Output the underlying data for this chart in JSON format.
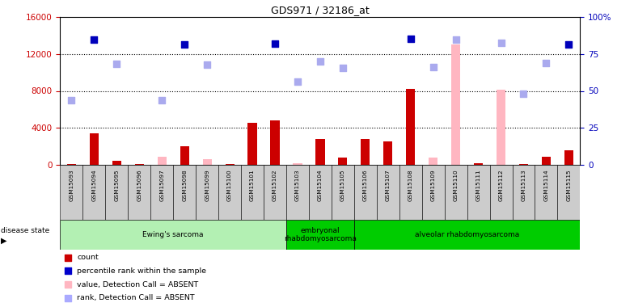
{
  "title": "GDS971 / 32186_at",
  "samples": [
    "GSM15093",
    "GSM15094",
    "GSM15095",
    "GSM15096",
    "GSM15097",
    "GSM15098",
    "GSM15099",
    "GSM15100",
    "GSM15101",
    "GSM15102",
    "GSM15103",
    "GSM15104",
    "GSM15105",
    "GSM15106",
    "GSM15107",
    "GSM15108",
    "GSM15109",
    "GSM15110",
    "GSM15111",
    "GSM15112",
    "GSM15113",
    "GSM15114",
    "GSM15115"
  ],
  "count_red": [
    100,
    3400,
    500,
    100,
    null,
    2000,
    null,
    100,
    4600,
    4800,
    null,
    2800,
    800,
    2800,
    2600,
    8200,
    100,
    300,
    200,
    200,
    100,
    900,
    1600
  ],
  "count_pink": [
    null,
    null,
    null,
    null,
    900,
    null,
    600,
    null,
    null,
    null,
    200,
    null,
    null,
    null,
    null,
    null,
    800,
    13000,
    null,
    8100,
    null,
    null,
    null
  ],
  "rank_blue": [
    null,
    13500,
    null,
    null,
    null,
    13000,
    null,
    null,
    null,
    13100,
    null,
    null,
    null,
    null,
    null,
    13600,
    null,
    null,
    null,
    null,
    null,
    null,
    13000
  ],
  "rank_lightblue": [
    7000,
    null,
    10900,
    null,
    7000,
    null,
    10800,
    null,
    null,
    null,
    9000,
    11200,
    10500,
    null,
    null,
    null,
    10600,
    13500,
    null,
    13200,
    7700,
    11000,
    null
  ],
  "ylim_left": [
    0,
    16000
  ],
  "ylim_right": [
    0,
    100
  ],
  "yticks_left": [
    0,
    4000,
    8000,
    12000,
    16000
  ],
  "yticks_right": [
    0,
    25,
    50,
    75,
    100
  ],
  "groups": [
    {
      "label": "Ewing's sarcoma",
      "start": 0,
      "end": 10,
      "color": "#b3f0b3"
    },
    {
      "label": "embryonal\nrhabdomyosarcoma",
      "start": 10,
      "end": 13,
      "color": "#00cc00"
    },
    {
      "label": "alveolar rhabdomyosarcoma",
      "start": 13,
      "end": 23,
      "color": "#00cc00"
    }
  ],
  "legend_items": [
    {
      "label": "count",
      "color": "#CC0000"
    },
    {
      "label": "percentile rank within the sample",
      "color": "#0000CC"
    },
    {
      "label": "value, Detection Call = ABSENT",
      "color": "#FFB6C1"
    },
    {
      "label": "rank, Detection Call = ABSENT",
      "color": "#AAAAFF"
    }
  ],
  "bar_width": 0.4,
  "bg_color": "#FFFFFF"
}
